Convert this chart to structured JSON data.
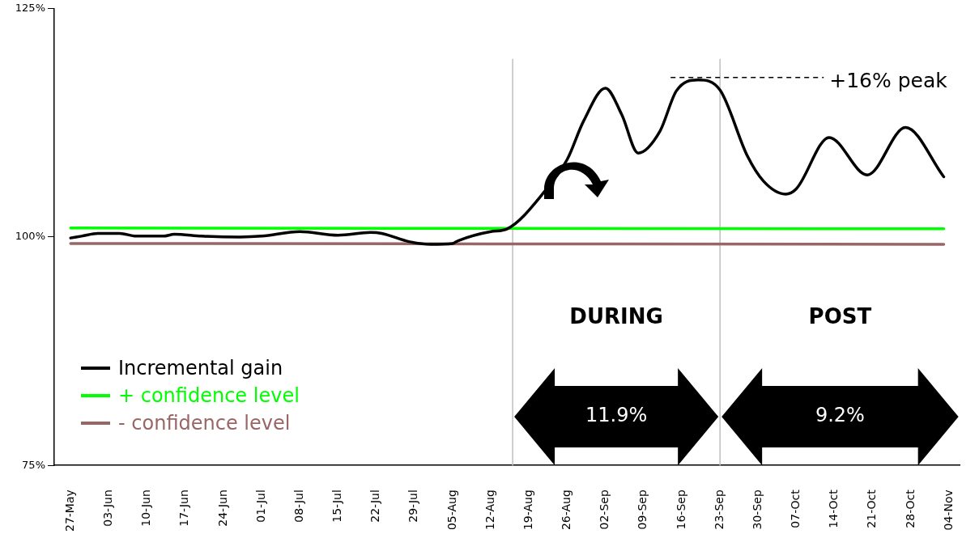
{
  "chart_data": {
    "type": "line",
    "x": [
      "--05-27",
      "--05-29",
      "--06-01",
      "--06-05",
      "--06-08",
      "--06-13",
      "--06-15",
      "--06-20",
      "--06-27",
      "--07-01",
      "--07-08",
      "--07-15",
      "--07-21",
      "--07-23",
      "--07-28",
      "--08-01",
      "--08-05",
      "--08-06",
      "--08-12",
      "--08-15",
      "--08-22",
      "--08-26",
      "--08-29",
      "--09-02",
      "--09-05",
      "--09-08",
      "--09-12",
      "--09-15",
      "--09-19",
      "--09-23",
      "--09-28",
      "--10-01",
      "--10-05",
      "--10-07",
      "--10-13",
      "--10-20",
      "--10-27",
      "--11-03"
    ],
    "series": [
      {
        "name": "Incremental gain",
        "color": "#000000",
        "values": [
          99.9,
          100.1,
          100.4,
          100.4,
          100.1,
          100.1,
          100.3,
          100.1,
          100.0,
          100.1,
          100.6,
          100.2,
          100.5,
          100.4,
          99.5,
          99.2,
          99.3,
          99.6,
          100.6,
          100.9,
          105.1,
          108.5,
          112.7,
          116.3,
          113.4,
          109.2,
          111.6,
          116.0,
          117.2,
          116.1,
          108.9,
          106.1,
          104.7,
          105.3,
          110.9,
          106.8,
          112.0,
          106.6
        ]
      },
      {
        "name": "+ confidence level",
        "color": "#00ff00",
        "x": [
          "--05-27",
          "--11-03"
        ],
        "values": [
          101.0,
          100.9
        ]
      },
      {
        "name": "- confidence level",
        "color": "#996666",
        "x": [
          "--05-27",
          "--11-03"
        ],
        "values": [
          99.3,
          99.2
        ]
      }
    ],
    "xlim": [
      "--05-24",
      "--11-06"
    ],
    "xticks": [
      {
        "value": "--05-27",
        "label": "27-May"
      },
      {
        "value": "--06-03",
        "label": "03-Jun"
      },
      {
        "value": "--06-10",
        "label": "10-Jun"
      },
      {
        "value": "--06-17",
        "label": "17-Jun"
      },
      {
        "value": "--06-24",
        "label": "24-Jun"
      },
      {
        "value": "--07-01",
        "label": "01-Jul"
      },
      {
        "value": "--07-08",
        "label": "08-Jul"
      },
      {
        "value": "--07-15",
        "label": "15-Jul"
      },
      {
        "value": "--07-22",
        "label": "22-Jul"
      },
      {
        "value": "--07-29",
        "label": "29-Jul"
      },
      {
        "value": "--08-05",
        "label": "05-Aug"
      },
      {
        "value": "--08-12",
        "label": "12-Aug"
      },
      {
        "value": "--08-19",
        "label": "19-Aug"
      },
      {
        "value": "--08-26",
        "label": "26-Aug"
      },
      {
        "value": "--09-02",
        "label": "02-Sep"
      },
      {
        "value": "--09-09",
        "label": "09-Sep"
      },
      {
        "value": "--09-16",
        "label": "16-Sep"
      },
      {
        "value": "--09-23",
        "label": "23-Sep"
      },
      {
        "value": "--09-30",
        "label": "30-Sep"
      },
      {
        "value": "--10-07",
        "label": "07-Oct"
      },
      {
        "value": "--10-14",
        "label": "14-Oct"
      },
      {
        "value": "--10-21",
        "label": "21-Oct"
      },
      {
        "value": "--10-28",
        "label": "28-Oct"
      },
      {
        "value": "--11-04",
        "label": "04-Nov"
      }
    ],
    "ylim": [
      75,
      125
    ],
    "yticks": [
      {
        "value": 75,
        "label": "75%"
      },
      {
        "value": 100,
        "label": "100%"
      },
      {
        "value": 125,
        "label": "125%"
      }
    ],
    "grid": false,
    "legend": "bottom left",
    "marker": "none",
    "line_style": "solid",
    "ref_lines": [
      {
        "axis": "x",
        "value": "--08-16",
        "color": "#bfbfbf"
      },
      {
        "axis": "x",
        "value": "--09-23",
        "color": "#bfbfbf"
      }
    ],
    "annotations": [
      "+16% peak",
      "DURING",
      "POST",
      "11.9%",
      "9.2%"
    ]
  }
}
